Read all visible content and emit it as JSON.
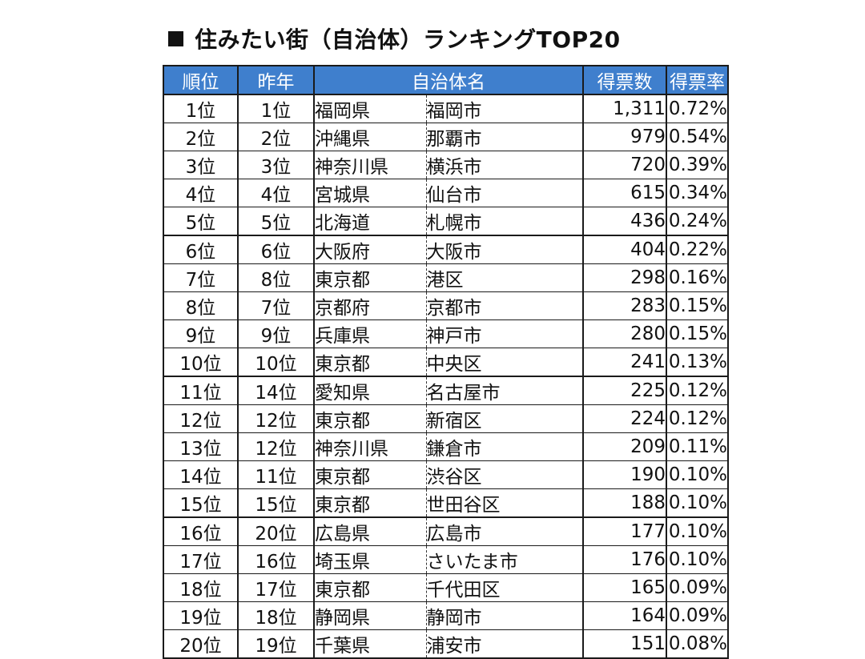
{
  "title": "住みたい街（自治体）ランキングTOP20",
  "table": {
    "headers": {
      "rank": "順位",
      "previous": "昨年",
      "municipality": "自治体名",
      "votes": "得票数",
      "rate": "得票率"
    },
    "rows": [
      {
        "rank": "1位",
        "previous": "1位",
        "prefecture": "福岡県",
        "city": "福岡市",
        "votes": "1,311",
        "rate": "0.72%"
      },
      {
        "rank": "2位",
        "previous": "2位",
        "prefecture": "沖縄県",
        "city": "那覇市",
        "votes": "979",
        "rate": "0.54%"
      },
      {
        "rank": "3位",
        "previous": "3位",
        "prefecture": "神奈川県",
        "city": "横浜市",
        "votes": "720",
        "rate": "0.39%"
      },
      {
        "rank": "4位",
        "previous": "4位",
        "prefecture": "宮城県",
        "city": "仙台市",
        "votes": "615",
        "rate": "0.34%"
      },
      {
        "rank": "5位",
        "previous": "5位",
        "prefecture": "北海道",
        "city": "札幌市",
        "votes": "436",
        "rate": "0.24%"
      },
      {
        "rank": "6位",
        "previous": "6位",
        "prefecture": "大阪府",
        "city": "大阪市",
        "votes": "404",
        "rate": "0.22%"
      },
      {
        "rank": "7位",
        "previous": "8位",
        "prefecture": "東京都",
        "city": "港区",
        "votes": "298",
        "rate": "0.16%"
      },
      {
        "rank": "8位",
        "previous": "7位",
        "prefecture": "京都府",
        "city": "京都市",
        "votes": "283",
        "rate": "0.15%"
      },
      {
        "rank": "9位",
        "previous": "9位",
        "prefecture": "兵庫県",
        "city": "神戸市",
        "votes": "280",
        "rate": "0.15%"
      },
      {
        "rank": "10位",
        "previous": "10位",
        "prefecture": "東京都",
        "city": "中央区",
        "votes": "241",
        "rate": "0.13%"
      },
      {
        "rank": "11位",
        "previous": "14位",
        "prefecture": "愛知県",
        "city": "名古屋市",
        "votes": "225",
        "rate": "0.12%"
      },
      {
        "rank": "12位",
        "previous": "12位",
        "prefecture": "東京都",
        "city": "新宿区",
        "votes": "224",
        "rate": "0.12%"
      },
      {
        "rank": "13位",
        "previous": "12位",
        "prefecture": "神奈川県",
        "city": "鎌倉市",
        "votes": "209",
        "rate": "0.11%"
      },
      {
        "rank": "14位",
        "previous": "11位",
        "prefecture": "東京都",
        "city": "渋谷区",
        "votes": "190",
        "rate": "0.10%"
      },
      {
        "rank": "15位",
        "previous": "15位",
        "prefecture": "東京都",
        "city": "世田谷区",
        "votes": "188",
        "rate": "0.10%"
      },
      {
        "rank": "16位",
        "previous": "20位",
        "prefecture": "広島県",
        "city": "広島市",
        "votes": "177",
        "rate": "0.10%"
      },
      {
        "rank": "17位",
        "previous": "16位",
        "prefecture": "埼玉県",
        "city": "さいたま市",
        "votes": "176",
        "rate": "0.10%"
      },
      {
        "rank": "18位",
        "previous": "17位",
        "prefecture": "東京都",
        "city": "千代田区",
        "votes": "165",
        "rate": "0.09%"
      },
      {
        "rank": "19位",
        "previous": "18位",
        "prefecture": "静岡県",
        "city": "静岡市",
        "votes": "164",
        "rate": "0.09%"
      },
      {
        "rank": "20位",
        "previous": "19位",
        "prefecture": "千葉県",
        "city": "浦安市",
        "votes": "151",
        "rate": "0.08%"
      }
    ]
  }
}
